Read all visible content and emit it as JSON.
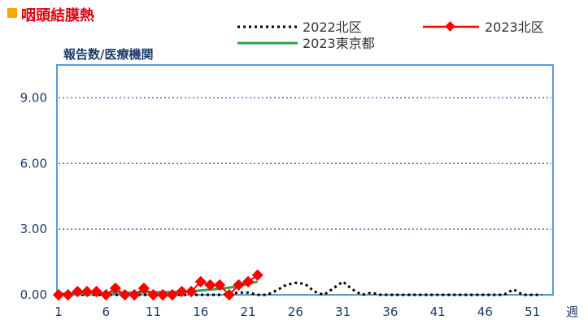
{
  "chart_data": {
    "type": "line",
    "title": "咽頭結膜熱",
    "ylabel": "報告数/医療機関",
    "xlabel": "週",
    "xlim": [
      1,
      53
    ],
    "ylim": [
      0,
      10.5
    ],
    "y_ticks": [
      "0.00",
      "3.00",
      "6.00",
      "9.00"
    ],
    "y_tick_values": [
      0,
      3,
      6,
      9
    ],
    "x_ticks": [
      "1",
      "6",
      "11",
      "16",
      "21",
      "26",
      "31",
      "36",
      "41",
      "46",
      "51"
    ],
    "x_tick_values": [
      1,
      6,
      11,
      16,
      21,
      26,
      31,
      36,
      41,
      46,
      51
    ],
    "grid": "horizontal dotted",
    "legend_position": "top",
    "colors": {
      "title_marker": "#f5a800",
      "title": "#e60012",
      "axis_frame": "#5b9bd5",
      "grid": "#4472c4"
    },
    "series": [
      {
        "name": "2022北区",
        "style": "dotted",
        "color": "#000000",
        "x": [
          1,
          2,
          3,
          4,
          5,
          6,
          7,
          8,
          9,
          10,
          11,
          12,
          13,
          14,
          15,
          16,
          17,
          18,
          19,
          20,
          21,
          22,
          23,
          24,
          25,
          26,
          27,
          28,
          29,
          30,
          31,
          32,
          33,
          34,
          35,
          36,
          37,
          38,
          39,
          40,
          41,
          42,
          43,
          44,
          45,
          46,
          47,
          48,
          49,
          50,
          51,
          52
        ],
        "values": [
          0,
          0,
          0,
          0,
          0,
          0,
          0,
          0,
          0,
          0,
          0,
          0,
          0,
          0,
          0,
          0,
          0,
          0,
          0.05,
          0.1,
          0.1,
          0,
          0,
          0.2,
          0.45,
          0.55,
          0.5,
          0.15,
          0,
          0.3,
          0.6,
          0.25,
          0,
          0.1,
          0,
          0,
          0,
          0,
          0,
          0,
          0,
          0,
          0,
          0,
          0,
          0,
          0,
          0,
          0.25,
          0,
          0,
          0
        ]
      },
      {
        "name": "2023北区",
        "style": "line-diamond",
        "color": "#ff0000",
        "x": [
          1,
          2,
          3,
          4,
          5,
          6,
          7,
          8,
          9,
          10,
          11,
          12,
          13,
          14,
          15,
          16,
          17,
          18,
          19,
          20,
          21,
          22
        ],
        "values": [
          0,
          0,
          0.15,
          0.15,
          0.15,
          0,
          0.3,
          0,
          0,
          0.3,
          0,
          0,
          0,
          0.15,
          0.15,
          0.6,
          0.45,
          0.45,
          0,
          0.45,
          0.6,
          0.9
        ]
      },
      {
        "name": "2023東京都",
        "style": "line",
        "color": "#2aa44f",
        "x": [
          1,
          2,
          3,
          4,
          5,
          6,
          7,
          8,
          9,
          10,
          11,
          12,
          13,
          14,
          15,
          16,
          17,
          18,
          19,
          20,
          21,
          22
        ],
        "values": [
          0.05,
          0.06,
          0.07,
          0.07,
          0.08,
          0.08,
          0.09,
          0.1,
          0.1,
          0.11,
          0.12,
          0.12,
          0.13,
          0.14,
          0.16,
          0.2,
          0.24,
          0.28,
          0.33,
          0.4,
          0.5,
          0.6
        ]
      }
    ]
  }
}
